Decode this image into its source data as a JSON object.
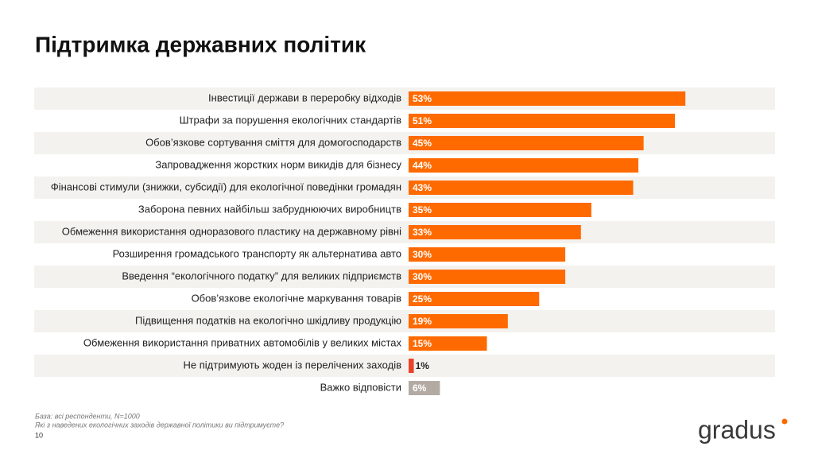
{
  "chart_data": {
    "type": "bar",
    "orientation": "horizontal",
    "title": "Підтримка державних політик",
    "categories": [
      "Інвестиції держави в переробку відходів",
      "Штрафи за порушення екологічних стандартів",
      "Обов’язкове сортування сміття для домогосподарств",
      "Запровадження жорстких норм викидів для бізнесу",
      "Фінансові стимули (знижки, субсидії) для екологічної поведінки громадян",
      "Заборона певних найбільш забруднюючих виробництв",
      "Обмеження використання одноразового пластику на державному рівні",
      "Розширення громадського транспорту як альтернатива авто",
      "Введення “екологічного податку” для великих підприємств",
      "Обов’язкове екологічне маркування товарів",
      "Підвищення податків на екологічно шкідливу продукцію",
      "Обмеження використання приватних автомобілів у великих містах",
      "Не підтримують жоден із перелічених заходів",
      "Важко відповісти"
    ],
    "values": [
      53,
      51,
      45,
      44,
      43,
      35,
      33,
      30,
      30,
      25,
      19,
      15,
      1,
      6
    ],
    "value_labels": [
      "53%",
      "51%",
      "45%",
      "44%",
      "43%",
      "35%",
      "33%",
      "30%",
      "30%",
      "25%",
      "19%",
      "15%",
      "1%",
      "6%"
    ],
    "colors": [
      "#ff6a00",
      "#ff6a00",
      "#ff6a00",
      "#ff6a00",
      "#ff6a00",
      "#ff6a00",
      "#ff6a00",
      "#ff6a00",
      "#ff6a00",
      "#ff6a00",
      "#ff6a00",
      "#ff6a00",
      "#e8442a",
      "#b3aba3"
    ]
  },
  "footnote": {
    "base": "База: всі респонденти, N=1000",
    "question": "Які з наведених екологічних заходів державної політики ви підтримуєте?",
    "page": "10"
  },
  "logo": "gradus"
}
